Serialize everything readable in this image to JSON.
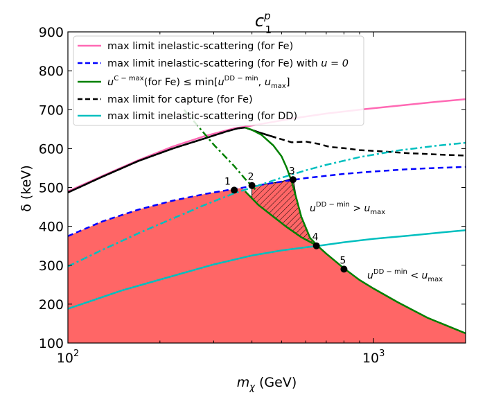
{
  "chart_data": {
    "type": "line",
    "title": "c",
    "title_sup": "p",
    "title_sub": "1",
    "xlabel": "m",
    "xlabel_sub": "χ",
    "xlabel_unit": " (GeV)",
    "ylabel": "δ (keV)",
    "xscale": "log",
    "xlim": [
      100,
      2000
    ],
    "ylim": [
      100,
      900
    ],
    "x_ticks": [
      {
        "v": 100,
        "b": "10",
        "e": "2"
      },
      {
        "v": 1000,
        "b": "10",
        "e": "3"
      }
    ],
    "y_ticks": [
      100,
      200,
      300,
      400,
      500,
      600,
      700,
      800,
      900
    ],
    "legend": [
      {
        "label": "max limit inelastic-scattering (for Fe)",
        "color": "#ff69b4",
        "dash": "solid"
      },
      {
        "label": "max limit inelastic-scattering (for Fe) with u = 0",
        "color": "#0000ff",
        "dash": "dashed"
      },
      {
        "label": "u^{C-max}(for Fe) ≤ min[u^{DD-min}, u_max]",
        "color": "#008000",
        "dash": "solid"
      },
      {
        "label": "max limit for capture (for Fe)",
        "color": "#000000",
        "dash": "dashed"
      },
      {
        "label": "max limit inelastic-scattering (for DD)",
        "color": "#00bfbf",
        "dash": "solid"
      }
    ],
    "legend_text": {
      "l1": "max limit inelastic-scattering (for Fe)",
      "l2a": "max limit inelastic-scattering (for Fe) with ",
      "l2b": "u = 0",
      "l3_u": "u",
      "l3_sup1": "C − max",
      "l3_mid": "(for Fe) ",
      "l3_le": "≤ min[",
      "l3_u2": "u",
      "l3_sup2": "DD − min",
      "l3_comma": ", ",
      "l3_u3": "u",
      "l3_sub3": "max",
      "l3_close": "]",
      "l4": "max limit for capture (for Fe)",
      "l5": "max limit inelastic-scattering (for DD)"
    },
    "series": [
      {
        "name": "max limit inelastic-scattering (for Fe)",
        "color": "#ff69b4",
        "x": [
          100,
          130,
          170,
          220,
          280,
          350,
          380,
          450,
          550,
          700,
          900,
          1200,
          1600,
          2000
        ],
        "y": [
          490,
          530,
          570,
          605,
          632,
          652,
          656,
          666,
          678,
          690,
          700,
          710,
          720,
          727
        ]
      },
      {
        "name": "max limit inelastic-scattering (for Fe) with u = 0",
        "color": "#0000ff",
        "dash": true,
        "x": [
          100,
          130,
          170,
          220,
          280,
          350,
          400,
          500,
          600,
          800,
          1000,
          1300,
          1600,
          2000
        ],
        "y": [
          375,
          413,
          443,
          466,
          483,
          496,
          503,
          515,
          524,
          535,
          541,
          547,
          550,
          553
        ]
      },
      {
        "name": "max limit for capture (for Fe)",
        "color": "#000000",
        "dash": true,
        "x": [
          100,
          130,
          170,
          220,
          280,
          330,
          360,
          380,
          420,
          480,
          540,
          600,
          660,
          720,
          800,
          900,
          1000,
          1100,
          1300,
          1500,
          1700,
          2000
        ],
        "y": [
          487,
          528,
          568,
          600,
          626,
          644,
          652,
          654,
          642,
          628,
          616,
          618,
          612,
          604,
          601,
          596,
          594,
          592,
          588,
          586,
          584,
          582
        ]
      },
      {
        "name": "max limit capture (for Fe) solid",
        "color": "#000000",
        "dash": false,
        "x": [
          100,
          130,
          170,
          220,
          280,
          330,
          360,
          380,
          420,
          480
        ],
        "y": [
          487,
          528,
          568,
          600,
          626,
          644,
          652,
          654,
          642,
          628
        ]
      },
      {
        "name": "max limit inelastic-scattering (for DD)",
        "color": "#00bfbf",
        "x": [
          100,
          150,
          200,
          300,
          400,
          500,
          600,
          660,
          800,
          1000,
          1300,
          1600,
          2000
        ],
        "y": [
          188,
          235,
          263,
          302,
          325,
          338,
          346,
          350,
          359,
          368,
          376,
          383,
          390
        ]
      },
      {
        "name": "DD dash-dot",
        "color": "#00bfbf",
        "dashdot": true,
        "x": [
          100,
          130,
          170,
          220,
          280,
          350,
          420,
          500,
          600,
          700,
          900,
          1200,
          1600,
          2000
        ],
        "y": [
          297,
          340,
          382,
          420,
          455,
          485,
          505,
          525,
          544,
          558,
          578,
          595,
          607,
          615
        ]
      },
      {
        "name": "green dash-dot",
        "color": "#008000",
        "dashdot": true,
        "x": [
          240,
          300,
          350,
          380,
          410
        ],
        "y": [
          700,
          610,
          555,
          522,
          495
        ]
      },
      {
        "name": "u^C-max (for Fe)",
        "color": "#008000",
        "x": [
          380,
          400,
          430,
          470,
          500,
          520,
          540,
          560,
          580,
          620,
          660,
          700,
          800,
          900,
          1000,
          1200,
          1500,
          2000
        ],
        "y": [
          654,
          648,
          635,
          608,
          580,
          550,
          515,
          470,
          425,
          370,
          348,
          330,
          292,
          262,
          240,
          205,
          165,
          125
        ]
      }
    ],
    "green_lower_branch": {
      "x": [
        380,
        420,
        470,
        520,
        580,
        620,
        660
      ],
      "y": [
        490,
        455,
        425,
        398,
        372,
        360,
        348
      ]
    },
    "points": [
      {
        "label": "1",
        "x": 350,
        "y": 493
      },
      {
        "label": "2",
        "x": 400,
        "y": 505
      },
      {
        "label": "3",
        "x": 545,
        "y": 520
      },
      {
        "label": "4",
        "x": 650,
        "y": 350
      },
      {
        "label": "5",
        "x": 800,
        "y": 290
      }
    ],
    "annotations": [
      {
        "u": "u",
        "sup": "DD − min",
        "rel": " > ",
        "u2": "u",
        "sub": "max",
        "x": 620,
        "y": 400
      },
      {
        "u": "u",
        "sup": "DD − min",
        "rel": " < ",
        "u2": "u",
        "sub": "max",
        "x": 950,
        "y": 270
      }
    ],
    "fill_color": "#ff6666"
  }
}
